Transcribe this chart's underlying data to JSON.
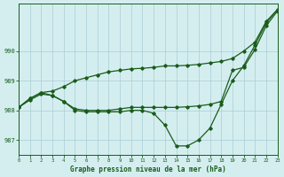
{
  "title": "Graphe pression niveau de la mer (hPa)",
  "bg_color": "#d4eef0",
  "grid_color": "#aaccd4",
  "line_color": "#1a5c1a",
  "xlim": [
    0,
    23
  ],
  "ylim": [
    986.5,
    991.6
  ],
  "yticks": [
    987,
    988,
    989,
    990
  ],
  "xticks": [
    0,
    1,
    2,
    3,
    4,
    5,
    6,
    7,
    8,
    9,
    10,
    11,
    12,
    13,
    14,
    15,
    16,
    17,
    18,
    19,
    20,
    21,
    22,
    23
  ],
  "y_main": [
    988.1,
    988.4,
    988.6,
    988.5,
    988.3,
    988.0,
    987.95,
    987.95,
    987.95,
    987.95,
    988.0,
    988.0,
    987.9,
    987.5,
    986.8,
    986.8,
    987.0,
    987.4,
    988.2,
    989.0,
    989.5,
    990.2,
    990.95,
    991.4
  ],
  "y_upper": [
    988.1,
    988.4,
    988.6,
    988.65,
    988.8,
    989.0,
    989.1,
    989.2,
    989.3,
    989.35,
    989.4,
    989.42,
    989.45,
    989.5,
    989.5,
    989.52,
    989.55,
    989.6,
    989.65,
    989.75,
    990.0,
    990.3,
    991.0,
    991.4
  ],
  "y_third": [
    988.1,
    988.35,
    988.55,
    988.5,
    988.3,
    988.05,
    988.0,
    988.0,
    988.0,
    988.05,
    988.1,
    988.1,
    988.1,
    988.1,
    988.1,
    988.12,
    988.15,
    988.2,
    988.3,
    989.35,
    989.45,
    990.05,
    990.85,
    991.35
  ]
}
